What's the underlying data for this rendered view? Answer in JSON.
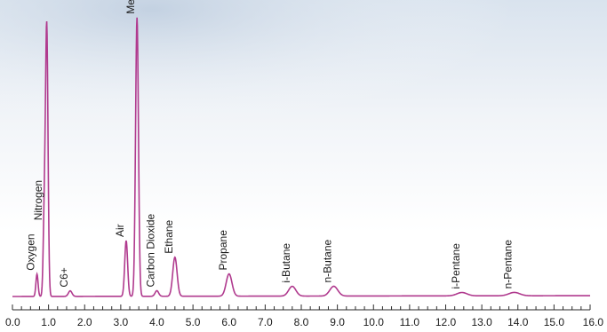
{
  "chart_data": {
    "type": "line",
    "title": "",
    "xlabel": "",
    "ylabel": "",
    "xlim": [
      0.0,
      16.0
    ],
    "ylim": [
      0,
      100
    ],
    "grid": false,
    "legend": "none",
    "line_color": "#b03a8e",
    "axis_color": "#2b2b2b",
    "x_tick_labels": [
      "0.0",
      "1.0",
      "2.0",
      "3.0",
      "4.0",
      "5.0",
      "6.0",
      "7.0",
      "8.0",
      "9.0",
      "10.0",
      "11.0",
      "12.0",
      "13.0",
      "14.0",
      "15.0",
      "16.0"
    ],
    "peaks": [
      {
        "label": "Oxygen",
        "x": 0.68,
        "height": 8,
        "width": 0.03
      },
      {
        "label": "Nitrogen",
        "x": 0.88,
        "height": 26,
        "width": 0.03
      },
      {
        "label": "",
        "x": 0.95,
        "height": 97,
        "width": 0.035
      },
      {
        "label": "C6+",
        "x": 1.6,
        "height": 2,
        "width": 0.05
      },
      {
        "label": "Air",
        "x": 3.15,
        "height": 20,
        "width": 0.04
      },
      {
        "label": "Methane",
        "x": 3.45,
        "height": 100,
        "width": 0.04
      },
      {
        "label": "Carbon Dioxide",
        "x": 4.0,
        "height": 2,
        "width": 0.05
      },
      {
        "label": "Ethane",
        "x": 4.5,
        "height": 14,
        "width": 0.06
      },
      {
        "label": "Propane",
        "x": 6.0,
        "height": 8,
        "width": 0.08
      },
      {
        "label": "i-Butane",
        "x": 7.75,
        "height": 3.5,
        "width": 0.1
      },
      {
        "label": "n-Butane",
        "x": 8.9,
        "height": 3.5,
        "width": 0.11
      },
      {
        "label": "i-Pentane",
        "x": 12.45,
        "height": 1.2,
        "width": 0.14
      },
      {
        "label": "n-Pentane",
        "x": 13.9,
        "height": 1.2,
        "width": 0.15
      }
    ]
  }
}
